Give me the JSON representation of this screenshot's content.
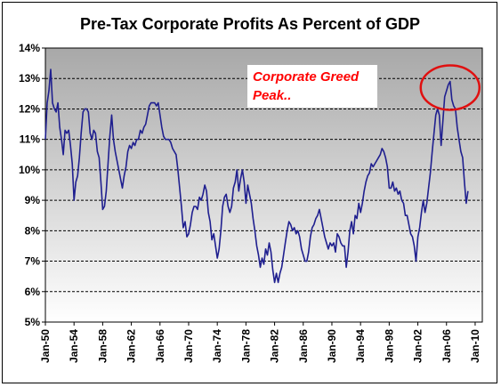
{
  "chart_data": {
    "type": "line",
    "title": "Pre-Tax Corporate Profits As Percent of GDP",
    "xlabel": "",
    "ylabel": "",
    "x_ticks": [
      "Jan-50",
      "Jan-54",
      "Jan-58",
      "Jan-62",
      "Jan-66",
      "Jan-70",
      "Jan-74",
      "Jan-78",
      "Jan-82",
      "Jan-86",
      "Jan-90",
      "Jan-94",
      "Jan-98",
      "Jan-02",
      "Jan-06",
      "Jan-10"
    ],
    "y_ticks": [
      "5%",
      "6%",
      "7%",
      "8%",
      "9%",
      "10%",
      "11%",
      "12%",
      "13%",
      "14%"
    ],
    "xlim": [
      1950,
      2011
    ],
    "ylim": [
      5,
      14
    ],
    "grid": true,
    "line_color": "#1f1f8f",
    "annotation": {
      "text_line1": "Corporate Greed",
      "text_line2": "Peak..",
      "text_color": "#ff0000",
      "circle_color": "#e01010",
      "target": [
        2006.5,
        12.7
      ]
    },
    "series": [
      {
        "values": [
          [
            1950.0,
            11.0
          ],
          [
            1950.25,
            12.2
          ],
          [
            1950.5,
            12.6
          ],
          [
            1950.75,
            13.3
          ],
          [
            1951.0,
            12.2
          ],
          [
            1951.25,
            12.0
          ],
          [
            1951.5,
            11.9
          ],
          [
            1951.75,
            12.2
          ],
          [
            1952.0,
            11.4
          ],
          [
            1952.25,
            11.0
          ],
          [
            1952.5,
            10.5
          ],
          [
            1952.75,
            11.3
          ],
          [
            1953.0,
            11.2
          ],
          [
            1953.25,
            11.3
          ],
          [
            1953.5,
            10.8
          ],
          [
            1953.75,
            10.2
          ],
          [
            1954.0,
            9.0
          ],
          [
            1954.25,
            9.6
          ],
          [
            1954.5,
            9.8
          ],
          [
            1954.75,
            10.4
          ],
          [
            1955.0,
            11.2
          ],
          [
            1955.25,
            11.9
          ],
          [
            1955.5,
            12.0
          ],
          [
            1955.75,
            12.0
          ],
          [
            1956.0,
            11.9
          ],
          [
            1956.25,
            11.2
          ],
          [
            1956.5,
            11.0
          ],
          [
            1956.75,
            11.3
          ],
          [
            1957.0,
            11.2
          ],
          [
            1957.25,
            10.6
          ],
          [
            1957.5,
            10.4
          ],
          [
            1957.75,
            9.6
          ],
          [
            1958.0,
            8.7
          ],
          [
            1958.25,
            8.8
          ],
          [
            1958.5,
            9.3
          ],
          [
            1958.75,
            10.2
          ],
          [
            1959.0,
            11.1
          ],
          [
            1959.25,
            11.8
          ],
          [
            1959.5,
            11.0
          ],
          [
            1959.75,
            10.6
          ],
          [
            1960.0,
            10.3
          ],
          [
            1960.25,
            10.0
          ],
          [
            1960.5,
            9.7
          ],
          [
            1960.75,
            9.4
          ],
          [
            1961.0,
            9.8
          ],
          [
            1961.25,
            10.1
          ],
          [
            1961.5,
            10.6
          ],
          [
            1961.75,
            10.8
          ],
          [
            1962.0,
            10.7
          ],
          [
            1962.25,
            10.9
          ],
          [
            1962.5,
            10.8
          ],
          [
            1962.75,
            11.0
          ],
          [
            1963.0,
            11.0
          ],
          [
            1963.25,
            11.3
          ],
          [
            1963.5,
            11.2
          ],
          [
            1963.75,
            11.4
          ],
          [
            1964.0,
            11.5
          ],
          [
            1964.25,
            11.8
          ],
          [
            1964.5,
            12.1
          ],
          [
            1964.75,
            12.2
          ],
          [
            1965.0,
            12.2
          ],
          [
            1965.25,
            12.2
          ],
          [
            1965.5,
            12.1
          ],
          [
            1965.75,
            12.2
          ],
          [
            1966.0,
            11.8
          ],
          [
            1966.25,
            11.4
          ],
          [
            1966.5,
            11.1
          ],
          [
            1966.75,
            11.0
          ],
          [
            1967.0,
            11.0
          ],
          [
            1967.25,
            11.0
          ],
          [
            1967.5,
            10.9
          ],
          [
            1967.75,
            10.7
          ],
          [
            1968.0,
            10.6
          ],
          [
            1968.25,
            10.5
          ],
          [
            1968.5,
            10.0
          ],
          [
            1968.75,
            9.4
          ],
          [
            1969.0,
            8.8
          ],
          [
            1969.25,
            8.1
          ],
          [
            1969.5,
            8.3
          ],
          [
            1969.75,
            7.8
          ],
          [
            1970.0,
            7.9
          ],
          [
            1970.25,
            8.2
          ],
          [
            1970.5,
            8.6
          ],
          [
            1970.75,
            8.8
          ],
          [
            1971.0,
            8.8
          ],
          [
            1971.25,
            8.7
          ],
          [
            1971.5,
            9.1
          ],
          [
            1971.75,
            9.0
          ],
          [
            1972.0,
            9.2
          ],
          [
            1972.25,
            9.5
          ],
          [
            1972.5,
            9.3
          ],
          [
            1972.75,
            8.6
          ],
          [
            1973.0,
            8.3
          ],
          [
            1973.25,
            7.7
          ],
          [
            1973.5,
            7.9
          ],
          [
            1973.75,
            7.5
          ],
          [
            1974.0,
            7.1
          ],
          [
            1974.25,
            7.4
          ],
          [
            1974.5,
            8.0
          ],
          [
            1974.75,
            8.8
          ],
          [
            1975.0,
            9.1
          ],
          [
            1975.25,
            9.2
          ],
          [
            1975.5,
            8.8
          ],
          [
            1975.75,
            8.6
          ],
          [
            1976.0,
            8.8
          ],
          [
            1976.25,
            9.4
          ],
          [
            1976.5,
            9.6
          ],
          [
            1976.75,
            10.0
          ],
          [
            1977.0,
            9.3
          ],
          [
            1977.25,
            9.7
          ],
          [
            1977.5,
            10.0
          ],
          [
            1977.75,
            9.6
          ],
          [
            1978.0,
            8.9
          ],
          [
            1978.25,
            9.5
          ],
          [
            1978.5,
            9.2
          ],
          [
            1978.75,
            8.9
          ],
          [
            1979.0,
            8.4
          ],
          [
            1979.25,
            8.0
          ],
          [
            1979.5,
            7.5
          ],
          [
            1979.75,
            7.2
          ],
          [
            1980.0,
            6.8
          ],
          [
            1980.25,
            7.1
          ],
          [
            1980.5,
            6.9
          ],
          [
            1980.75,
            7.4
          ],
          [
            1981.0,
            7.2
          ],
          [
            1981.25,
            7.6
          ],
          [
            1981.5,
            7.3
          ],
          [
            1981.75,
            6.7
          ],
          [
            1982.0,
            6.3
          ],
          [
            1982.25,
            6.6
          ],
          [
            1982.5,
            6.3
          ],
          [
            1982.75,
            6.6
          ],
          [
            1983.0,
            6.8
          ],
          [
            1983.25,
            7.2
          ],
          [
            1983.5,
            7.6
          ],
          [
            1983.75,
            8.0
          ],
          [
            1984.0,
            8.3
          ],
          [
            1984.25,
            8.2
          ],
          [
            1984.5,
            8.0
          ],
          [
            1984.75,
            8.1
          ],
          [
            1985.0,
            7.9
          ],
          [
            1985.25,
            8.0
          ],
          [
            1985.5,
            7.8
          ],
          [
            1985.75,
            7.4
          ],
          [
            1986.0,
            7.2
          ],
          [
            1986.25,
            7.0
          ],
          [
            1986.5,
            7.0
          ],
          [
            1986.75,
            7.3
          ],
          [
            1987.0,
            7.8
          ],
          [
            1987.25,
            8.1
          ],
          [
            1987.5,
            8.2
          ],
          [
            1987.75,
            8.4
          ],
          [
            1988.0,
            8.5
          ],
          [
            1988.25,
            8.7
          ],
          [
            1988.5,
            8.4
          ],
          [
            1988.75,
            8.1
          ],
          [
            1989.0,
            7.8
          ],
          [
            1989.25,
            7.6
          ],
          [
            1989.5,
            7.4
          ],
          [
            1989.75,
            7.6
          ],
          [
            1990.0,
            7.5
          ],
          [
            1990.25,
            7.6
          ],
          [
            1990.5,
            7.3
          ],
          [
            1990.75,
            7.9
          ],
          [
            1991.0,
            7.8
          ],
          [
            1991.25,
            7.6
          ],
          [
            1991.5,
            7.5
          ],
          [
            1991.75,
            7.5
          ],
          [
            1992.0,
            6.8
          ],
          [
            1992.25,
            7.3
          ],
          [
            1992.5,
            8.0
          ],
          [
            1992.75,
            8.3
          ],
          [
            1993.0,
            7.9
          ],
          [
            1993.25,
            8.5
          ],
          [
            1993.5,
            8.4
          ],
          [
            1993.75,
            8.9
          ],
          [
            1994.0,
            8.6
          ],
          [
            1994.25,
            8.9
          ],
          [
            1994.5,
            9.3
          ],
          [
            1994.75,
            9.6
          ],
          [
            1995.0,
            9.8
          ],
          [
            1995.25,
            9.9
          ],
          [
            1995.5,
            10.2
          ],
          [
            1995.75,
            10.1
          ],
          [
            1996.0,
            10.2
          ],
          [
            1996.25,
            10.3
          ],
          [
            1996.5,
            10.4
          ],
          [
            1996.75,
            10.5
          ],
          [
            1997.0,
            10.7
          ],
          [
            1997.25,
            10.6
          ],
          [
            1997.5,
            10.4
          ],
          [
            1997.75,
            10.1
          ],
          [
            1998.0,
            9.4
          ],
          [
            1998.25,
            9.4
          ],
          [
            1998.5,
            9.6
          ],
          [
            1998.75,
            9.3
          ],
          [
            1999.0,
            9.4
          ],
          [
            1999.25,
            9.2
          ],
          [
            1999.5,
            9.3
          ],
          [
            1999.75,
            9.0
          ],
          [
            2000.0,
            8.9
          ],
          [
            2000.25,
            8.5
          ],
          [
            2000.5,
            8.5
          ],
          [
            2000.75,
            8.2
          ],
          [
            2001.0,
            7.9
          ],
          [
            2001.25,
            7.8
          ],
          [
            2001.5,
            7.5
          ],
          [
            2001.75,
            7.0
          ],
          [
            2002.0,
            7.8
          ],
          [
            2002.25,
            8.1
          ],
          [
            2002.5,
            8.6
          ],
          [
            2002.75,
            9.0
          ],
          [
            2003.0,
            8.6
          ],
          [
            2003.25,
            8.9
          ],
          [
            2003.5,
            9.4
          ],
          [
            2003.75,
            9.9
          ],
          [
            2004.0,
            10.6
          ],
          [
            2004.25,
            11.2
          ],
          [
            2004.5,
            11.8
          ],
          [
            2004.75,
            12.0
          ],
          [
            2005.0,
            11.8
          ],
          [
            2005.25,
            10.8
          ],
          [
            2005.5,
            11.6
          ],
          [
            2005.75,
            12.4
          ],
          [
            2006.0,
            12.6
          ],
          [
            2006.25,
            12.8
          ],
          [
            2006.5,
            12.9
          ],
          [
            2006.75,
            12.3
          ],
          [
            2007.0,
            12.1
          ],
          [
            2007.25,
            12.0
          ],
          [
            2007.5,
            11.4
          ],
          [
            2007.75,
            11.0
          ],
          [
            2008.0,
            10.6
          ],
          [
            2008.25,
            10.4
          ],
          [
            2008.5,
            9.6
          ],
          [
            2008.75,
            8.9
          ],
          [
            2009.0,
            9.3
          ]
        ]
      }
    ]
  }
}
